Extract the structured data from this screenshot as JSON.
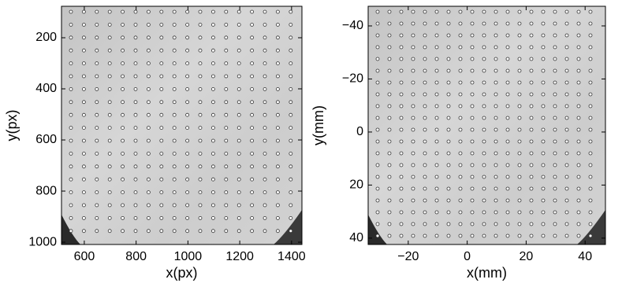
{
  "chart_data": [
    {
      "type": "image",
      "xlabel": "x(px)",
      "ylabel": "y(px)",
      "xlim": [
        512,
        1440
      ],
      "ylim": [
        77,
        1009
      ],
      "y_reversed": true,
      "xticks": [
        600,
        800,
        1000,
        1200,
        1400
      ],
      "yticks": [
        200,
        400,
        600,
        800,
        1000
      ]
    },
    {
      "type": "image",
      "xlabel": "x(mm)",
      "ylabel": "y(mm)",
      "xlim": [
        -33.6,
        46.9
      ],
      "ylim": [
        -47.4,
        42.4
      ],
      "y_reversed": true,
      "xticks": [
        {
          "value": -20,
          "label": "−20"
        },
        0,
        20,
        40
      ],
      "yticks": [
        {
          "value": -40,
          "label": "−40"
        },
        {
          "value": -20,
          "label": "−20"
        },
        0,
        20,
        40
      ]
    }
  ]
}
